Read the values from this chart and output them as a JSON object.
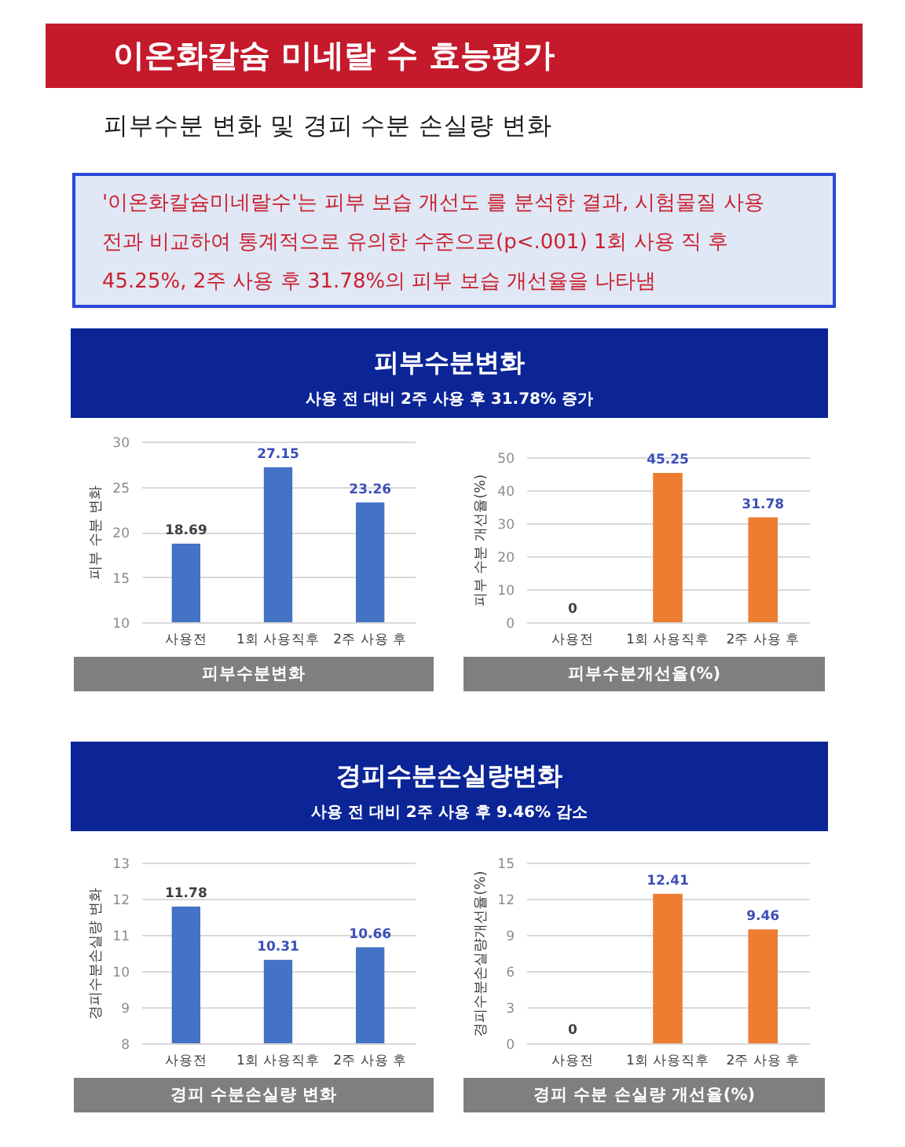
{
  "chart_data": [
    {
      "type": "other",
      "title": "이온화칼슘 미네랄 수 효능평가",
      "subtitle": "피부수분 변화 및 경피 수분 손실량 변화",
      "annotations": [
        "'이온화칼슘미네랄수'는 피부 보습 개선도 를 분석한 결과, 시험물질 사용 전과 비교하여 통계적으로 유의한 수준으로(p<.001) 1회 사용 직 후 45.25%, 2주 사용 후 31.78%의 피부 보습 개선율을 나타냄"
      ]
    },
    {
      "type": "other",
      "title": "피부수분변화",
      "subtitle": "사용 전 대비 2주 사용 후 31.78% 증가"
    },
    {
      "type": "bar",
      "title": "피부수분변화",
      "ylabel": "피부 수분 변화",
      "categories": [
        "사용전",
        "1회 사용직후",
        "2주 사용 후"
      ],
      "values": [
        18.69,
        27.15,
        23.26
      ],
      "color": "#4472c4",
      "ylim": [
        10,
        30
      ],
      "yticks": [
        10,
        15,
        20,
        25,
        30
      ],
      "grid": "y",
      "data_labels": true
    },
    {
      "type": "bar",
      "title": "피부수분개선율(%)",
      "ylabel": "피부 수분 개선율(%)",
      "categories": [
        "사용전",
        "1회 사용직후",
        "2주 사용 후"
      ],
      "values": [
        0,
        45.25,
        31.78
      ],
      "color": "#ed7d31",
      "ylim": [
        0,
        50
      ],
      "yticks": [
        0,
        10,
        20,
        30,
        40,
        50
      ],
      "grid": "y",
      "data_labels": true
    },
    {
      "type": "other",
      "title": "경피수분손실량변화",
      "subtitle": "사용 전 대비 2주 사용 후 9.46% 감소"
    },
    {
      "type": "bar",
      "title": "경피 수분손실량 변화",
      "ylabel": "경피수분손실량 변화",
      "categories": [
        "사용전",
        "1회 사용직후",
        "2주 사용 후"
      ],
      "values": [
        11.78,
        10.31,
        10.66
      ],
      "color": "#4472c4",
      "ylim": [
        8,
        13
      ],
      "yticks": [
        8,
        9,
        10,
        11,
        12,
        13
      ],
      "grid": "y",
      "data_labels": true
    },
    {
      "type": "bar",
      "title": "경피 수분 손실량 개선율(%)",
      "ylabel": "경피수분손실량개선율(%)",
      "categories": [
        "사용전",
        "1회 사용직후",
        "2주 사용 후"
      ],
      "values": [
        0,
        12.41,
        9.46
      ],
      "color": "#ed7d31",
      "ylim": [
        0,
        15
      ],
      "yticks": [
        0,
        3,
        6,
        9,
        12,
        15
      ],
      "grid": "y",
      "data_labels": true
    }
  ]
}
